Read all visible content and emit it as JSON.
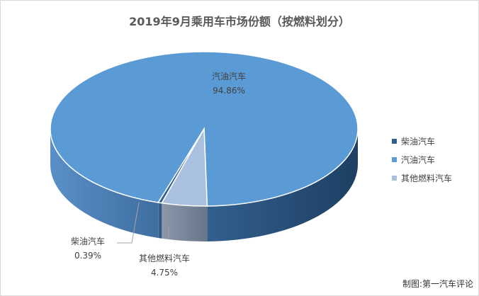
{
  "chart_data": {
    "type": "pie",
    "style": "3d",
    "title": "2019年9月乘用车市场份额（按燃料划分）",
    "legend_position": "right",
    "slices": [
      {
        "name": "柴油汽车",
        "value": 0.39,
        "label": "0.39%",
        "color": "#2e5f8f"
      },
      {
        "name": "汽油汽车",
        "value": 94.86,
        "label": "94.86%",
        "color": "#5b9bd5"
      },
      {
        "name": "其他燃料汽车",
        "value": 4.75,
        "label": "4.75%",
        "color": "#a9c0de"
      }
    ]
  },
  "credit": "制图:第一汽车评论"
}
